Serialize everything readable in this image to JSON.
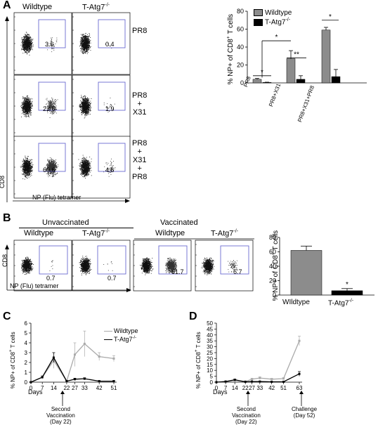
{
  "panels": {
    "A": {
      "letter": "A",
      "columns": [
        "Wildtype",
        "T-Atg7",
        "-/-"
      ],
      "rows": [
        {
          "label_lines": [
            "PR8"
          ],
          "wt": "3.6",
          "ko": "0.4"
        },
        {
          "label_lines": [
            "PR8",
            "+",
            "X31"
          ],
          "wt": "22.6",
          "ko": "1.9"
        },
        {
          "label_lines": [
            "PR8",
            "+",
            "X31",
            "+",
            "PR8"
          ],
          "wt": "60.6",
          "ko": "4.6"
        }
      ],
      "y_axis": "CD8",
      "x_axis": "NP (Flu) tetramer"
    },
    "B": {
      "letter": "B",
      "groups": [
        "Unvaccinated",
        "Vaccinated"
      ],
      "columns": [
        "Wildtype",
        "T-Atg7",
        "Wildtype",
        "T-Atg7"
      ],
      "values": [
        "0.7",
        "0.7",
        "61.7",
        "6.7"
      ],
      "y_axis": "CD8",
      "x_axis": "NP (Flu) tetramer"
    },
    "C": {
      "letter": "C",
      "xlabel": "Days",
      "arrow_label": [
        "Second",
        "Vaccination",
        "(Day 22)"
      ]
    },
    "D": {
      "letter": "D",
      "xlabel": "Days",
      "arrow_label": [
        "Second",
        "Vaccination",
        "(Day 22)"
      ],
      "arrow2_label": [
        "Challenge",
        "(Day 52)"
      ]
    }
  },
  "superscript": "-/-",
  "chart_data": [
    {
      "type": "bar",
      "id": "A-bar",
      "categories": [
        "PR8",
        "PR8+X31",
        "PR8+X31+PR8"
      ],
      "series": [
        {
          "name": "Wildtype",
          "values": [
            4,
            27,
            59
          ],
          "err": [
            1,
            9,
            3
          ],
          "color": "#8c8c8c"
        },
        {
          "name": "T-Atg7",
          "values": [
            0.5,
            4,
            7
          ],
          "err": [
            0.3,
            4,
            8
          ],
          "color": "#000000"
        }
      ],
      "ylabel": "% NP+ of CD8",
      "ylabel_sup": "+",
      "ylabel_suffix": "T cells",
      "ylim": [
        0,
        80
      ],
      "yticks": [
        "0",
        "20",
        "40",
        "60",
        "80"
      ],
      "legend": "top-left",
      "stars": [
        "*",
        "*",
        "**",
        "*"
      ]
    },
    {
      "type": "bar",
      "id": "B-bar",
      "categories": [
        "WIldtype",
        "T-Atg7"
      ],
      "values": [
        62,
        6
      ],
      "err": [
        6,
        3
      ],
      "colors": [
        "#8c8c8c",
        "#000000"
      ],
      "ylabel": "% NP+ of CD8",
      "ylabel_sup": "+",
      "ylabel_suffix": "T cells",
      "ylim": [
        0,
        80
      ],
      "yticks": [
        "0",
        "20",
        "40",
        "60",
        "80"
      ],
      "stars": [
        "*"
      ]
    },
    {
      "type": "line",
      "id": "C-line",
      "x": [
        0,
        7,
        14,
        22,
        27,
        33,
        42,
        51
      ],
      "xticks": [
        "0",
        "7",
        "14",
        "22",
        "27",
        "33",
        "42",
        "51"
      ],
      "series": [
        {
          "name": "Wildtype",
          "values": [
            0,
            0.5,
            2.2,
            0.1,
            2.8,
            3.9,
            2.6,
            2.4
          ],
          "err": [
            0,
            0.2,
            0.8,
            0.1,
            1.2,
            1.3,
            0.4,
            0.3
          ],
          "color": "#aaaaaa"
        },
        {
          "name": "T-Atg7",
          "values": [
            0,
            0.5,
            2.5,
            0.1,
            0.3,
            0.35,
            0.1,
            0.1
          ],
          "err": [
            0,
            0.1,
            0.5,
            0.05,
            0.1,
            0.1,
            0.05,
            0.05
          ],
          "color": "#000000"
        }
      ],
      "ylabel": "% NP+ of CD8",
      "ylabel_sup": "+",
      "ylabel_suffix": "T cells",
      "ylim": [
        0,
        6
      ],
      "yticks": [
        "0",
        "1",
        "2",
        "3",
        "4",
        "5",
        "6"
      ],
      "legend": "top-right"
    },
    {
      "type": "line",
      "id": "D-line",
      "x": [
        0,
        7,
        14,
        22,
        27,
        33,
        42,
        51,
        63
      ],
      "xticks": [
        "0",
        "7",
        "14",
        "22",
        "27",
        "33",
        "42",
        "51",
        "63"
      ],
      "series": [
        {
          "name": "Wildtype",
          "values": [
            0,
            0.5,
            1.5,
            0.5,
            2.5,
            3.5,
            2.5,
            3,
            35
          ],
          "err": [
            0,
            0.2,
            0.5,
            0.3,
            0.8,
            1,
            0.7,
            0.8,
            4
          ],
          "color": "#aaaaaa"
        },
        {
          "name": "T-Atg7",
          "values": [
            0,
            0.5,
            2,
            0.3,
            0.5,
            0.5,
            0.3,
            0.3,
            7
          ],
          "err": [
            0,
            0.1,
            0.5,
            0.1,
            0.2,
            0.2,
            0.1,
            0.1,
            2
          ],
          "color": "#000000"
        }
      ],
      "ylabel": "% NP+ of CD8",
      "ylabel_sup": "+",
      "ylabel_suffix": "T cells",
      "ylim": [
        0,
        50
      ],
      "yticks": [
        "0",
        "5",
        "10",
        "15",
        "20",
        "25",
        "30",
        "35",
        "40",
        "45",
        "50"
      ]
    }
  ]
}
